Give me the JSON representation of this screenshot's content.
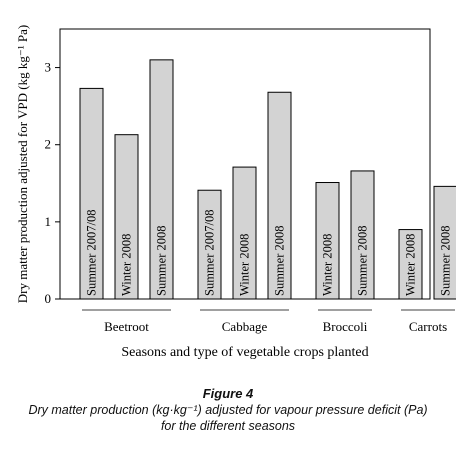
{
  "chart_data": {
    "type": "bar",
    "ylabel": "Dry matter production adjusted for VPD (kg kg⁻¹ Pa)",
    "xlabel": "Seasons and type of vegetable crops planted",
    "ylim": [
      0,
      3.5
    ],
    "yticks": [
      "0",
      "1",
      "2",
      "3"
    ],
    "groups": [
      {
        "name": "Beetroot",
        "bars": [
          {
            "season": "Summer 2007/08",
            "value": 2.73
          },
          {
            "season": "Winter 2008",
            "value": 2.13
          },
          {
            "season": "Summer 2008",
            "value": 3.1
          }
        ]
      },
      {
        "name": "Cabbage",
        "bars": [
          {
            "season": "Summer 2007/08",
            "value": 1.41
          },
          {
            "season": "Winter 2008",
            "value": 1.71
          },
          {
            "season": "Summer 2008",
            "value": 2.68
          }
        ]
      },
      {
        "name": "Broccoli",
        "bars": [
          {
            "season": "Winter 2008",
            "value": 1.51
          },
          {
            "season": "Summer 2008",
            "value": 1.66
          }
        ]
      },
      {
        "name": "Carrots",
        "bars": [
          {
            "season": "Winter 2008",
            "value": 0.9
          },
          {
            "season": "Summer 2008",
            "value": 1.46
          }
        ]
      }
    ],
    "bar_color": "#d3d3d3",
    "grid": false
  },
  "caption": {
    "title": "Figure 4",
    "line1": "Dry matter production (kg·kg⁻¹) adjusted for vapour pressure deficit (Pa)",
    "line2": "for the different seasons"
  }
}
